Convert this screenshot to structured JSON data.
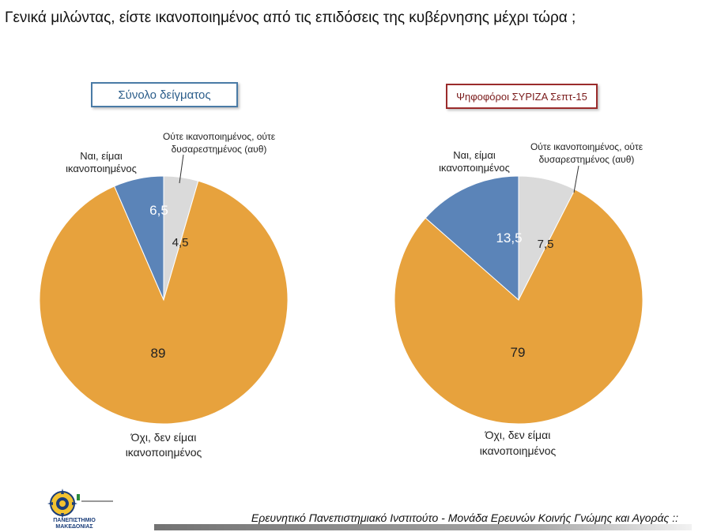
{
  "title": "Γενικά μιλώντας, είστε ικανοποιημένος από τις επιδόσεις της κυβέρνησης μέχρι τώρα ;",
  "footer": "Ερευνητικό Πανεπιστημιακό Ινστιτούτο - Μονάδα Ερευνών Κοινής Γνώμης και Αγοράς ::",
  "logo": {
    "name": "ΠΑΝΕΠΙΣΤΗΜΙΟ ΜΑΚΕΔΟΝΙΑΣ"
  },
  "colors": {
    "yes": "#5b84b8",
    "neutral": "#dadada",
    "no": "#e7a23d"
  },
  "chart_data": [
    {
      "type": "pie",
      "title": "Σύνολο δείγματος",
      "categories": [
        "Ναι, είμαι ικανοποιημένος",
        "Ούτε ικανοποιημένος, ούτε δυσαρεστημένος (αυθ)",
        "Όχι, δεν είμαι ικανοποιημένος"
      ],
      "values": [
        6.5,
        4.5,
        89
      ],
      "value_labels": [
        "6,5",
        "4,5",
        "89"
      ],
      "labels": {
        "yes": [
          "Ναι, είμαι",
          "ικανοποιημένος"
        ],
        "neutral": [
          "Ούτε ικανοποιημένος, ούτε",
          "δυσαρεστημένος (αυθ)"
        ],
        "no": [
          "Όχι, δεν είμαι",
          "ικανοποιημένος"
        ]
      }
    },
    {
      "type": "pie",
      "title": "Ψηφοφόροι ΣΥΡΙΖΑ Σεπτ-15",
      "categories": [
        "Ναι, είμαι ικανοποιημένος",
        "Ούτε ικανοποιημένος, ούτε δυσαρεστημένος (αυθ)",
        "Όχι, δεν είμαι ικανοποιημένος"
      ],
      "values": [
        13.5,
        7.5,
        79
      ],
      "value_labels": [
        "13,5",
        "7,5",
        "79"
      ],
      "labels": {
        "yes": [
          "Ναι, είμαι",
          "ικανοποιημένος"
        ],
        "neutral": [
          "Ούτε ικανοποιημένος, ούτε",
          "δυσαρεστημένος (αυθ)"
        ],
        "no": [
          "Όχι, δεν είμαι",
          "ικανοποιημένος"
        ]
      }
    }
  ]
}
